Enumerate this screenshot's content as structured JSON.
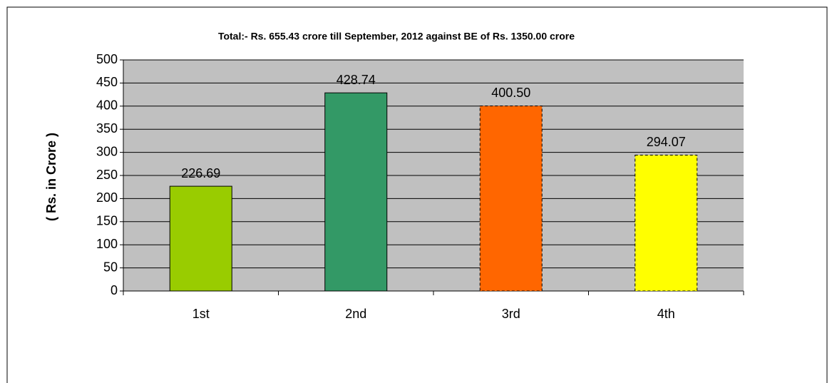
{
  "chart_data": {
    "type": "bar",
    "title": "Total:- Rs. 655.43 crore till September, 2012 against BE of Rs. 1350.00 crore",
    "ylabel": "( Rs.  in Crore )",
    "categories": [
      "1st",
      "2nd",
      "3rd",
      "4th"
    ],
    "values": [
      226.69,
      428.74,
      400.5,
      294.07
    ],
    "value_labels": [
      "226.69",
      "428.74",
      "400.50",
      "294.07"
    ],
    "colors": [
      "#99cc00",
      "#339966",
      "#ff6600",
      "#ffff00"
    ],
    "border_styles": [
      "solid",
      "solid",
      "dashed",
      "dashed"
    ],
    "ylim": [
      0,
      500
    ],
    "yticks": [
      0,
      50,
      100,
      150,
      200,
      250,
      300,
      350,
      400,
      450,
      500
    ],
    "grid": true
  }
}
